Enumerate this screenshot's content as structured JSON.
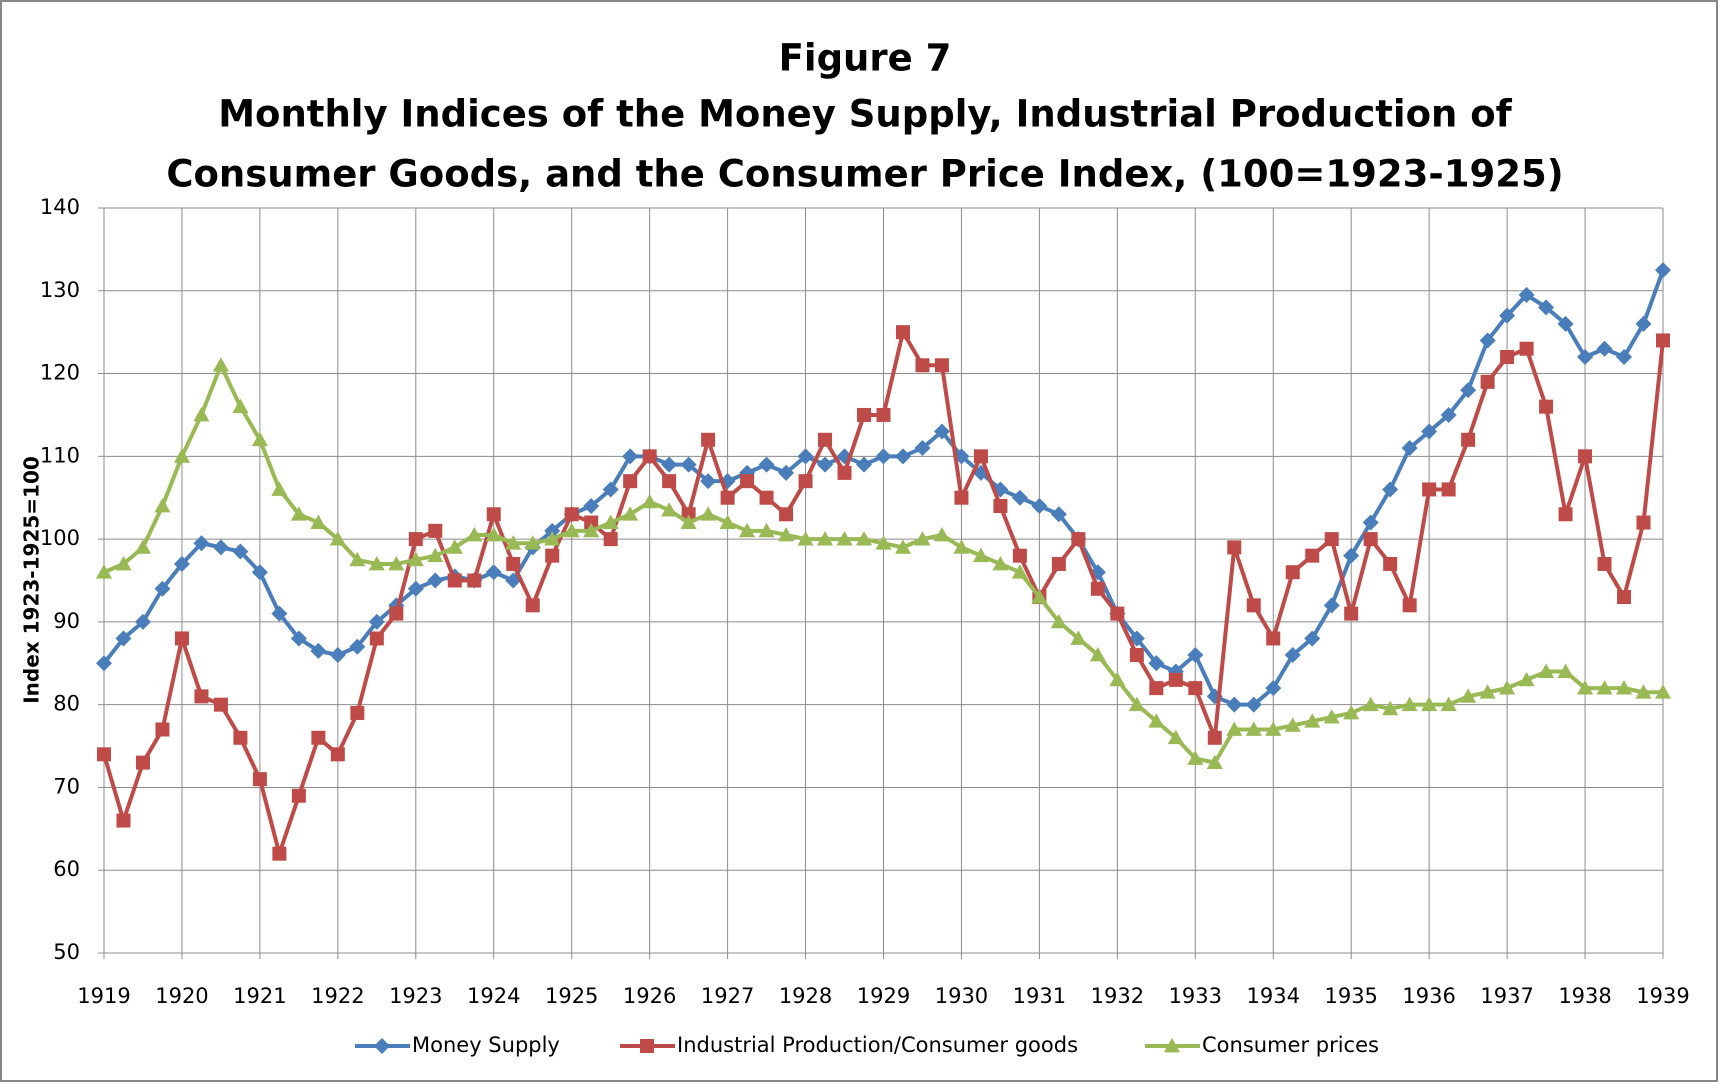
{
  "chart_data": {
    "type": "line",
    "title": "Figure 7",
    "subtitle": [
      "Monthly Indices of the Money Supply, Industrial Production of",
      "Consumer Goods, and the Consumer Price Index, (100=1923-1925)"
    ],
    "y_label": "Index 1923-1925=100",
    "xlim": [
      1919,
      1939
    ],
    "xticks": [
      1919,
      1920,
      1921,
      1922,
      1923,
      1924,
      1925,
      1926,
      1927,
      1928,
      1929,
      1930,
      1931,
      1932,
      1933,
      1934,
      1935,
      1936,
      1937,
      1938,
      1939
    ],
    "ylim": [
      50,
      140
    ],
    "yticks": [
      50,
      60,
      70,
      80,
      90,
      100,
      110,
      120,
      130,
      140
    ],
    "grid": true,
    "legend": "bottom",
    "x": [
      1919,
      1919.25,
      1919.5,
      1919.75,
      1920,
      1920.25,
      1920.5,
      1920.75,
      1921,
      1921.25,
      1921.5,
      1921.75,
      1922,
      1922.25,
      1922.5,
      1922.75,
      1923,
      1923.25,
      1923.5,
      1923.75,
      1924,
      1924.25,
      1924.5,
      1924.75,
      1925,
      1925.25,
      1925.5,
      1925.75,
      1926,
      1926.25,
      1926.5,
      1926.75,
      1927,
      1927.25,
      1927.5,
      1927.75,
      1928,
      1928.25,
      1928.5,
      1928.75,
      1929,
      1929.25,
      1929.5,
      1929.75,
      1930,
      1930.25,
      1930.5,
      1930.75,
      1931,
      1931.25,
      1931.5,
      1931.75,
      1932,
      1932.25,
      1932.5,
      1932.75,
      1933,
      1933.25,
      1933.5,
      1933.75,
      1934,
      1934.25,
      1934.5,
      1934.75,
      1935,
      1935.25,
      1935.5,
      1935.75,
      1936,
      1936.25,
      1936.5,
      1936.75,
      1937,
      1937.25,
      1937.5,
      1937.75,
      1938,
      1938.25,
      1938.5,
      1938.75,
      1939
    ],
    "series": [
      {
        "name": "Money Supply",
        "color": "#4a7ebb",
        "marker": "diamond",
        "values": [
          85,
          88,
          90,
          94,
          97,
          99.5,
          99,
          98.5,
          96,
          91,
          88,
          86.5,
          86,
          87,
          90,
          92,
          94,
          95,
          95.5,
          95,
          96,
          95,
          99,
          101,
          103,
          104,
          106,
          110,
          110,
          109,
          109,
          107,
          107,
          108,
          109,
          108,
          110,
          109,
          110,
          109,
          110,
          110,
          111,
          113,
          110,
          108,
          106,
          105,
          104,
          103,
          100,
          96,
          91,
          88,
          85,
          84,
          86,
          81,
          80,
          80,
          82,
          86,
          88,
          92,
          98,
          102,
          106,
          111,
          113,
          115,
          118,
          124,
          127,
          129.5,
          128,
          126,
          122,
          123,
          122,
          126,
          132.5
        ]
      },
      {
        "name": "Industrial Production/Consumer goods",
        "color": "#be4b48",
        "marker": "square",
        "values": [
          74,
          66,
          73,
          77,
          88,
          81,
          80,
          76,
          71,
          62,
          69,
          76,
          74,
          79,
          88,
          91,
          100,
          101,
          95,
          95,
          103,
          97,
          92,
          98,
          103,
          102,
          100,
          107,
          110,
          107,
          103,
          112,
          105,
          107,
          105,
          103,
          107,
          112,
          108,
          115,
          115,
          125,
          121,
          121,
          105,
          110,
          104,
          98,
          93,
          97,
          100,
          94,
          91,
          86,
          82,
          83,
          82,
          76,
          99,
          92,
          88,
          96,
          98,
          100,
          91,
          100,
          97,
          92,
          106,
          106,
          112,
          119,
          122,
          123,
          116,
          103,
          110,
          97,
          93,
          102,
          124
        ]
      },
      {
        "name": "Consumer prices",
        "color": "#98b954",
        "marker": "triangle",
        "values": [
          96,
          97,
          99,
          104,
          110,
          115,
          121,
          116,
          112,
          106,
          103,
          102,
          100,
          97.5,
          97,
          97,
          97.5,
          98,
          99,
          100.5,
          100.5,
          99.5,
          99.5,
          100,
          101,
          101,
          102,
          103,
          104.5,
          103.5,
          102,
          103,
          102,
          101,
          101,
          100.5,
          100,
          100,
          100,
          100,
          99.5,
          99,
          100,
          100.5,
          99,
          98,
          97,
          96,
          93,
          90,
          88,
          86,
          83,
          80,
          78,
          76,
          73.5,
          73,
          77,
          77,
          77,
          77.5,
          78,
          78.5,
          79,
          80,
          79.5,
          80,
          80,
          80,
          81,
          81.5,
          82,
          83,
          84,
          84,
          82,
          82,
          82,
          81.5,
          81.5
        ]
      }
    ]
  }
}
